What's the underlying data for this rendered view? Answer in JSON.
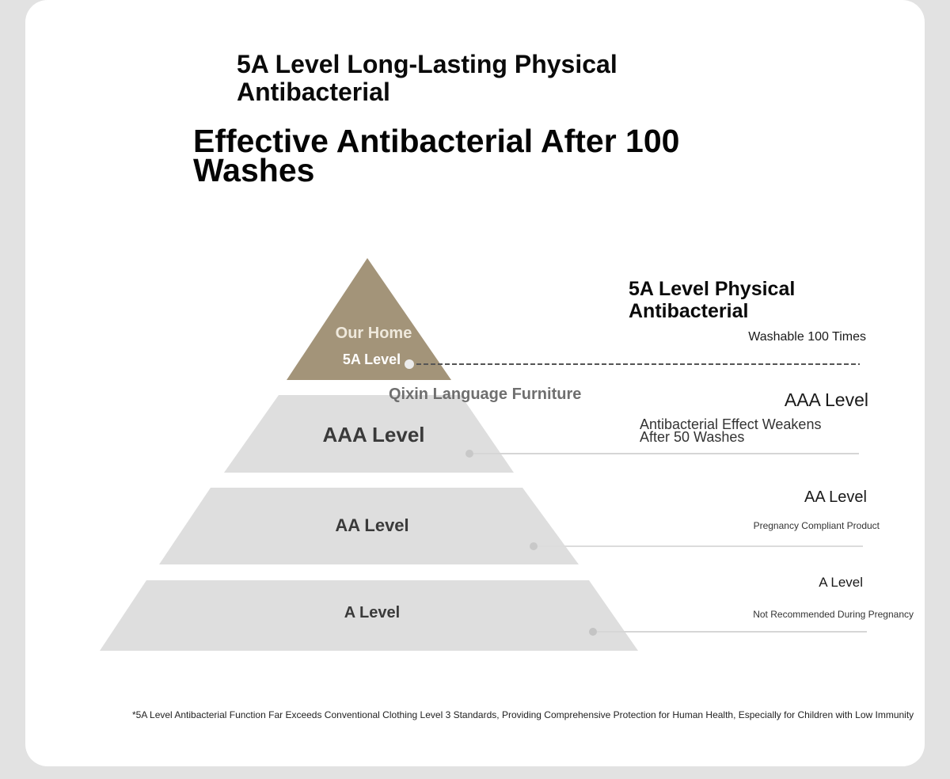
{
  "headings": {
    "subtitle": "5A Level Long-Lasting Physical Antibacterial",
    "title": "Effective Antibacterial After 100 Washes"
  },
  "pyramid": {
    "top_line1": "Our Home",
    "top_line2": "5A Level",
    "brand": "Qixin Language Furniture",
    "tier_aaa": "AAA Level",
    "tier_aa": "AA Level",
    "tier_a": "A Level"
  },
  "legend": {
    "level_5a": {
      "title": "5A Level Physical Antibacterial",
      "desc": "Washable 100 Times"
    },
    "level_aaa": {
      "title": "AAA Level",
      "desc": "Antibacterial Effect Weakens After 50 Washes"
    },
    "level_aa": {
      "title": "AA Level",
      "desc": "Pregnancy Compliant Product"
    },
    "level_a": {
      "title": "A Level",
      "desc": "Not Recommended During Pregnancy"
    }
  },
  "footnote": "*5A Level Antibacterial Function Far Exceeds Conventional Clothing Level 3 Standards, Providing Comprehensive Protection for Human Health, Especially for Children with Low Immunity",
  "colors": {
    "top_tier": "#a39479",
    "lower_tiers": "#dedede",
    "card": "#ffffff",
    "page_bg": "#e2e2e2"
  }
}
